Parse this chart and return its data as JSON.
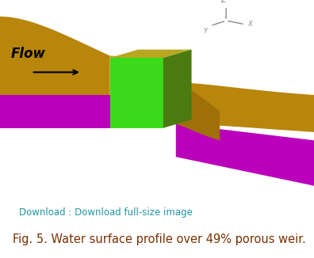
{
  "background_color": "#ffffff",
  "download_text": "Download : Download full-size image",
  "download_color": "#2196A6",
  "download_fontsize": 8.5,
  "caption_text": "Fig. 5. Water surface profile over 49% porous weir.",
  "caption_color": "#7B3000",
  "caption_fontsize": 10.5,
  "flow_text": "Flow",
  "flow_color": "#000000",
  "flow_fontsize": 12,
  "axis_color": "#888888",
  "weir_front_color": "#3ADA1A",
  "weir_top_color": "#B8A820",
  "weir_right_color": "#4A7A10",
  "water_color": "#B8860B",
  "water_dark_color": "#A07008",
  "channel_color": "#BB00BB"
}
